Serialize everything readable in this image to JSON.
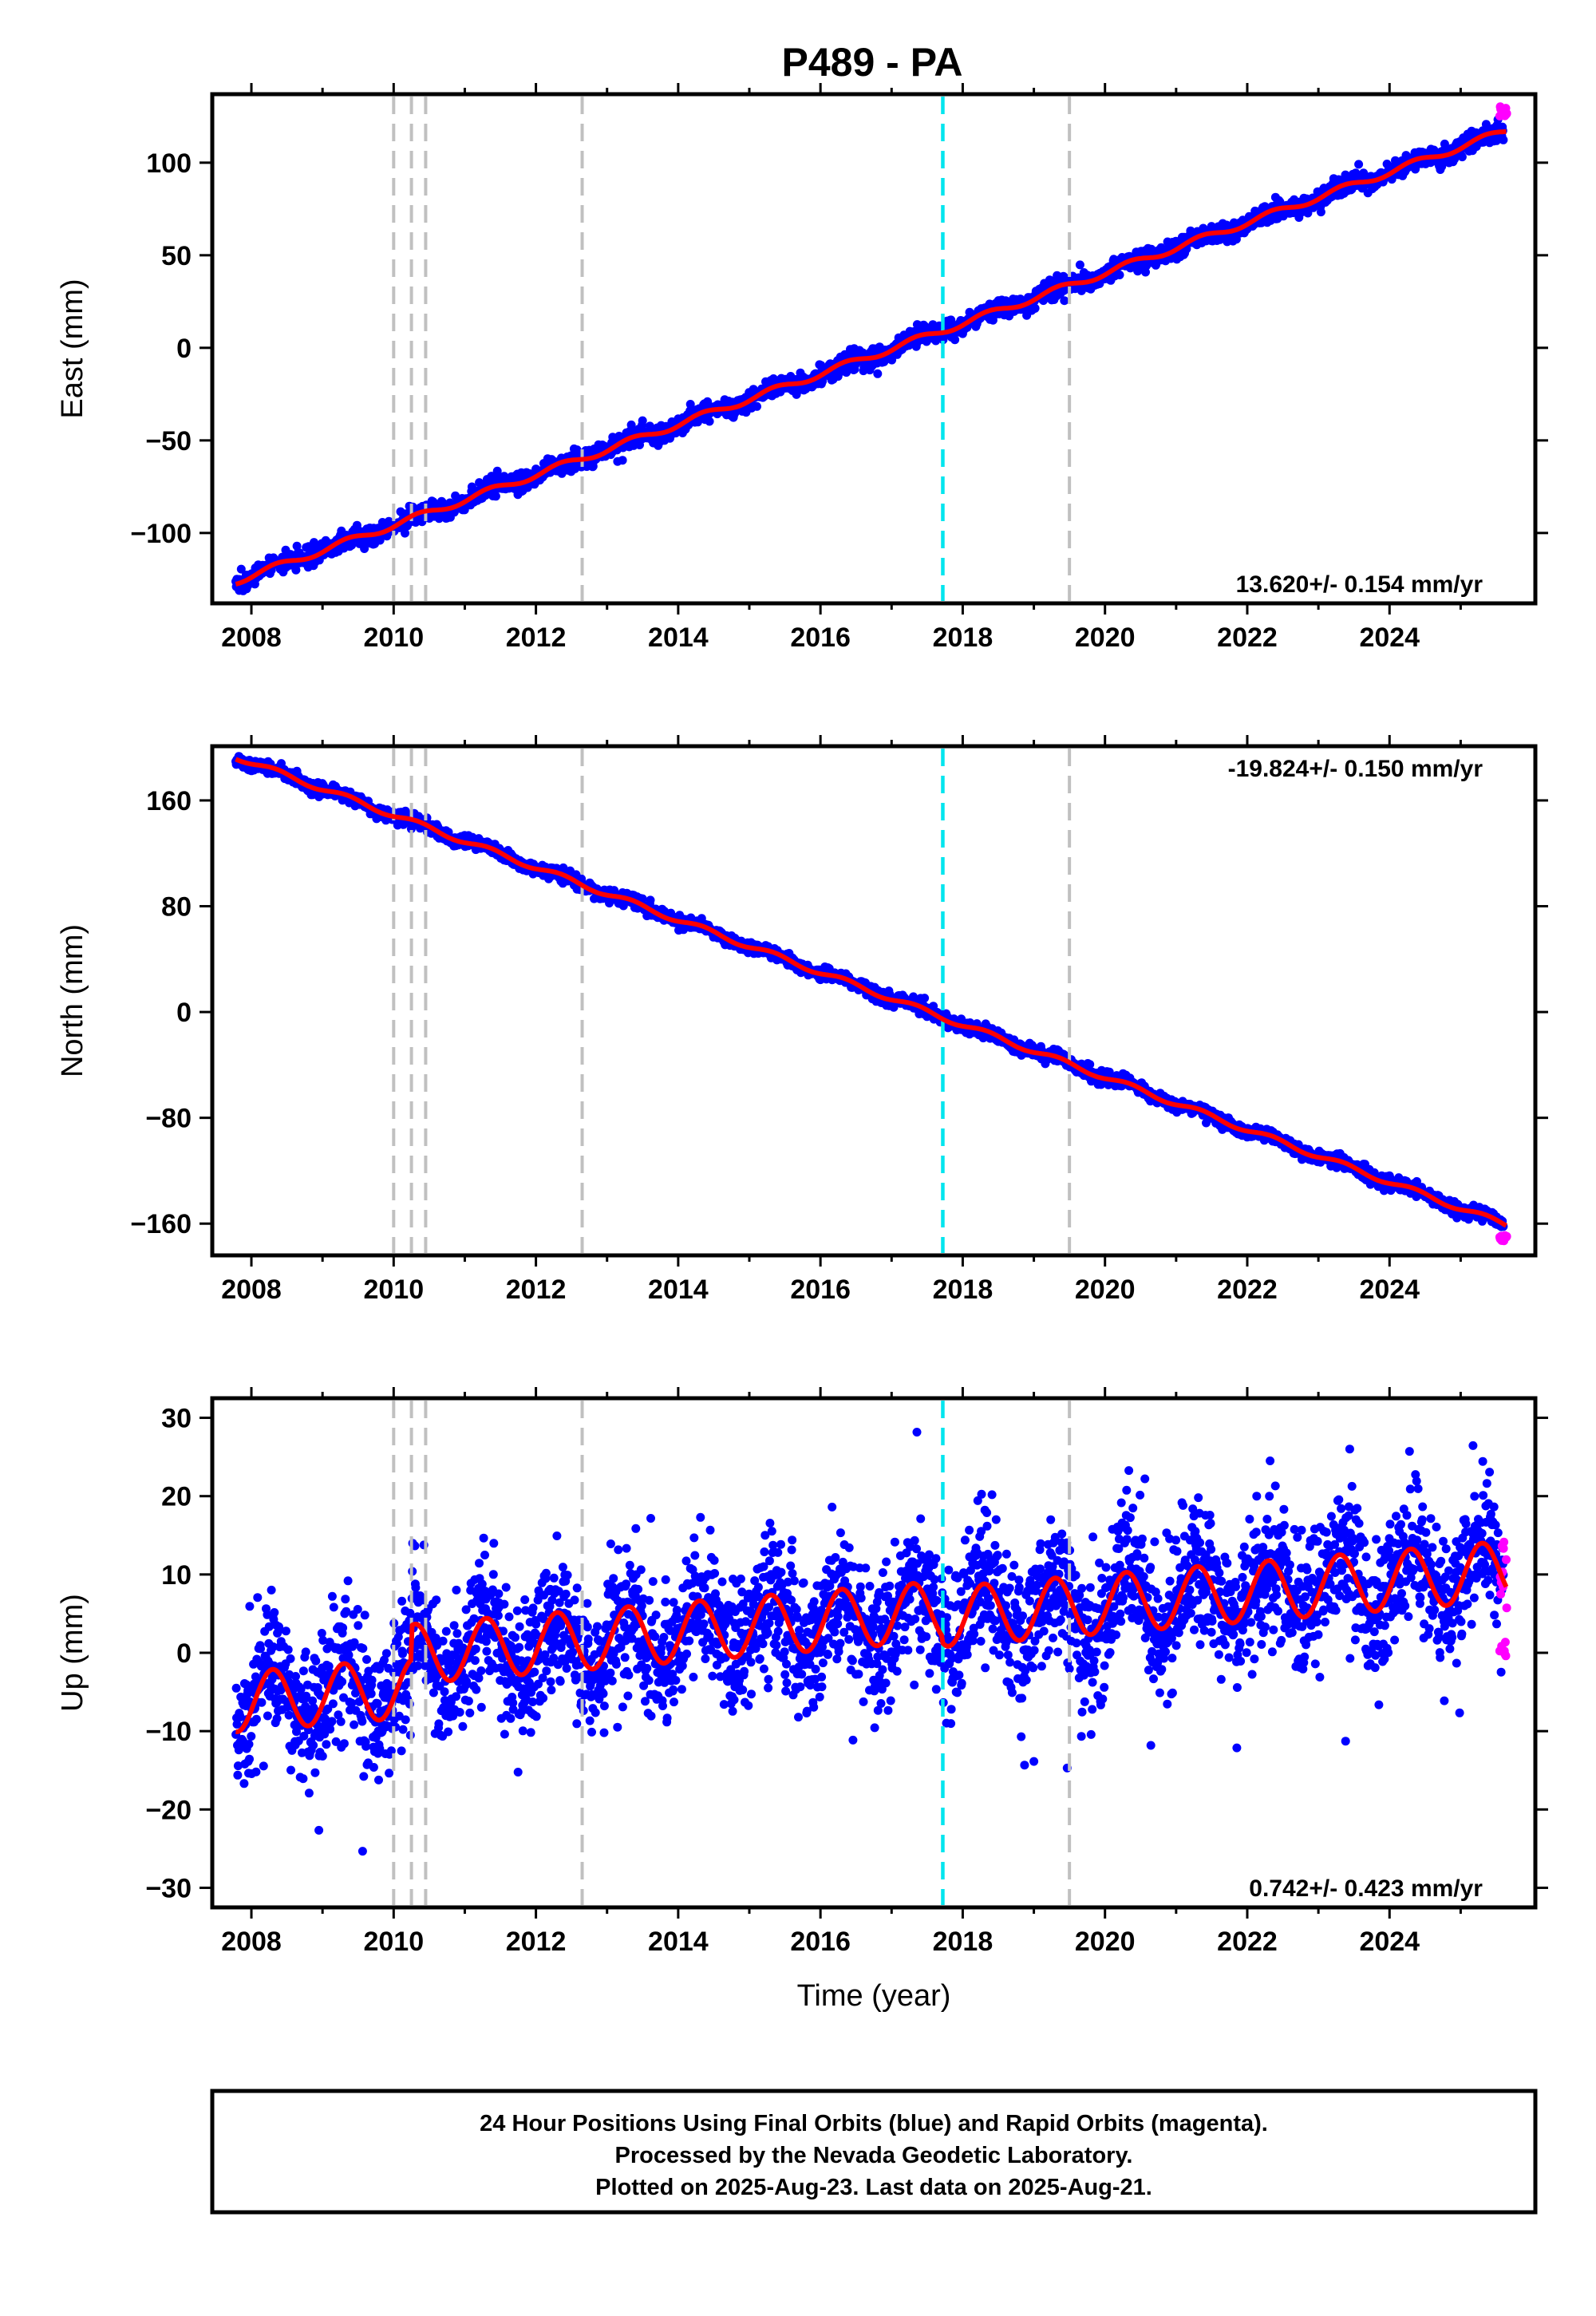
{
  "title": "P489 - PA",
  "colors": {
    "final_orbits": "#0000ff",
    "rapid_orbits": "#ff00ff",
    "model_fit": "#ff0000",
    "event_lines": "#c0c0c0",
    "highlight_event": "#00e5ee"
  },
  "chart_data": [
    {
      "type": "scatter",
      "component": "east",
      "ylabel": "East (mm)",
      "xlim": [
        2007.45,
        2026.05
      ],
      "ylim": [
        -138,
        137
      ],
      "xticks": [
        2008,
        2010,
        2012,
        2014,
        2016,
        2018,
        2020,
        2022,
        2024
      ],
      "xtick_labels": [
        "2008",
        "2010",
        "2012",
        "2014",
        "2016",
        "2018",
        "2020",
        "2022",
        "2024"
      ],
      "yticks": [
        -100,
        -50,
        0,
        50,
        100
      ],
      "ytick_labels": [
        "−100",
        "−50",
        "0",
        "50",
        "100"
      ],
      "rate_label": "13.620+/- 0.154 mm/yr",
      "rate_position": "bottom-right",
      "data_range": [
        2007.78,
        2025.64
      ],
      "fit": {
        "value_at_start": -126,
        "rate": 13.62,
        "annual_amplitude": 1.8,
        "scatter": 2.6
      },
      "rapid_end": 127,
      "vertical_lines": [
        2010.0,
        2010.25,
        2010.45,
        2012.65,
        2019.5
      ],
      "highlight_line": 2017.72,
      "grid": false
    },
    {
      "type": "scatter",
      "component": "north",
      "ylabel": "North (mm)",
      "xlim": [
        2007.45,
        2026.05
      ],
      "ylim": [
        -184,
        201
      ],
      "xticks": [
        2008,
        2010,
        2012,
        2014,
        2016,
        2018,
        2020,
        2022,
        2024
      ],
      "xtick_labels": [
        "2008",
        "2010",
        "2012",
        "2014",
        "2016",
        "2018",
        "2020",
        "2022",
        "2024"
      ],
      "yticks": [
        -160,
        -80,
        0,
        80,
        160
      ],
      "ytick_labels": [
        "−160",
        "−80",
        "0",
        "80",
        "160"
      ],
      "rate_label": "-19.824+/- 0.150 mm/yr",
      "rate_position": "top-right",
      "data_range": [
        2007.78,
        2025.64
      ],
      "fit": {
        "value_at_start": 193,
        "rate": -19.824,
        "annual_amplitude": 2.0,
        "scatter": 2.4
      },
      "rapid_end": -171,
      "vertical_lines": [
        2010.0,
        2010.25,
        2010.45,
        2012.65,
        2019.5
      ],
      "highlight_line": 2017.72,
      "grid": false
    },
    {
      "type": "scatter",
      "component": "up",
      "ylabel": "Up (mm)",
      "xlabel": "Time (year)",
      "xlim": [
        2007.45,
        2026.05
      ],
      "ylim": [
        -32.5,
        32.5
      ],
      "xticks": [
        2008,
        2010,
        2012,
        2014,
        2016,
        2018,
        2020,
        2022,
        2024
      ],
      "xtick_labels": [
        "2008",
        "2010",
        "2012",
        "2014",
        "2016",
        "2018",
        "2020",
        "2022",
        "2024"
      ],
      "yticks": [
        -30,
        -20,
        -10,
        0,
        10,
        20,
        30
      ],
      "ytick_labels": [
        "−30",
        "−20",
        "−10",
        "0",
        "10",
        "20",
        "30"
      ],
      "rate_label": "0.742+/- 0.423 mm/yr",
      "rate_position": "bottom-right",
      "data_range": [
        2007.78,
        2025.64
      ],
      "fit_segments": [
        {
          "from": 2007.78,
          "to": 2010.25,
          "offset": -6.3
        },
        {
          "from": 2010.25,
          "to": 2017.72,
          "offset": -2.0
        },
        {
          "from": 2017.72,
          "to": 2025.64,
          "offset": -2.8
        }
      ],
      "fit": {
        "rate": 0.742,
        "annual_amplitude": 3.8,
        "scatter": 4.2
      },
      "rapid_end": 8,
      "vertical_lines": [
        2010.0,
        2010.25,
        2010.45,
        2012.65,
        2019.5
      ],
      "highlight_line": 2017.72,
      "grid": false
    }
  ],
  "footer": {
    "line1": "24 Hour Positions Using Final Orbits (blue) and Rapid Orbits (magenta).",
    "line2": "Processed by the Nevada Geodetic Laboratory.",
    "line3": "Plotted on 2025-Aug-23. Last data on 2025-Aug-21."
  }
}
